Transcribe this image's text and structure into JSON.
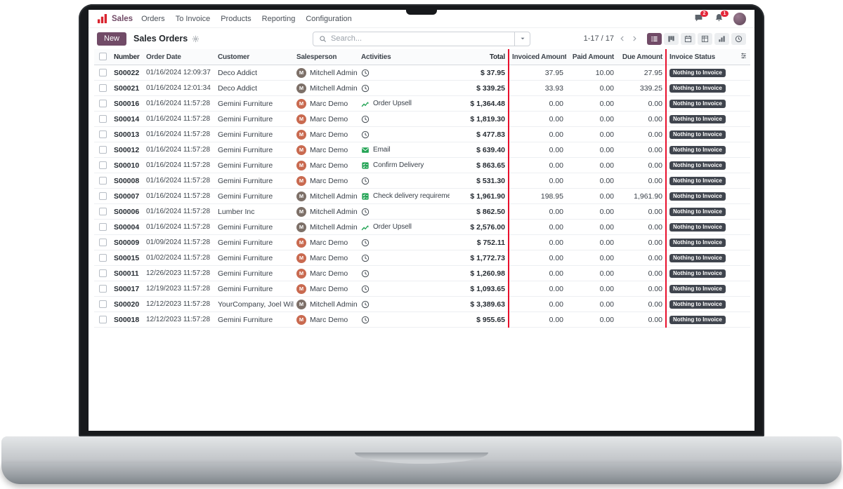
{
  "topbar": {
    "brand": "Sales",
    "menus": [
      "Orders",
      "To Invoice",
      "Products",
      "Reporting",
      "Configuration"
    ],
    "notifications": [
      {
        "icon": "chat-icon",
        "count": "2"
      },
      {
        "icon": "bell-icon",
        "count": "1"
      }
    ]
  },
  "control": {
    "new_button": "New",
    "title": "Sales Orders",
    "search_placeholder": "Search...",
    "pager": "1-17 / 17",
    "view_switcher": [
      {
        "icon": "list-view-icon",
        "active": true
      },
      {
        "icon": "kanban-view-icon",
        "active": false
      },
      {
        "icon": "calendar-view-icon",
        "active": false
      },
      {
        "icon": "pivot-view-icon",
        "active": false
      },
      {
        "icon": "graph-view-icon",
        "active": false
      },
      {
        "icon": "activity-view-icon",
        "active": false
      }
    ]
  },
  "colors": {
    "accent": "#714B67",
    "highlight_red": "#e8102d",
    "status_badge": "#40454e",
    "activity_green": "#23a455",
    "notification_red": "#e4273a"
  },
  "avatars": {
    "Mitchell Admin": {
      "initial": "M",
      "color": "#7d7068"
    },
    "Marc Demo": {
      "initial": "M",
      "color": "#c96a50"
    }
  },
  "table": {
    "headers": [
      "Number",
      "Order Date",
      "Customer",
      "Salesperson",
      "Activities",
      "Total",
      "Invoiced Amount",
      "Paid Amount",
      "Due Amount",
      "Invoice Status"
    ],
    "highlighted_columns": [
      "Invoiced Amount",
      "Paid Amount",
      "Due Amount"
    ],
    "rows": [
      {
        "number": "S00022",
        "date": "01/16/2024 12:09:37",
        "customer": "Deco Addict",
        "salesperson": "Mitchell Admin",
        "activity": {
          "icon": "clock-icon",
          "label": ""
        },
        "total": "$ 37.95",
        "invoiced": "37.95",
        "paid": "10.00",
        "due": "27.95",
        "status": "Nothing to Invoice"
      },
      {
        "number": "S00021",
        "date": "01/16/2024 12:01:34",
        "customer": "Deco Addict",
        "salesperson": "Mitchell Admin",
        "activity": {
          "icon": "clock-icon",
          "label": ""
        },
        "total": "$ 339.25",
        "invoiced": "33.93",
        "paid": "0.00",
        "due": "339.25",
        "status": "Nothing to Invoice"
      },
      {
        "number": "S00016",
        "date": "01/16/2024 11:57:28",
        "customer": "Gemini Furniture",
        "salesperson": "Marc Demo",
        "activity": {
          "icon": "chart-growth-icon",
          "label": "Order Upsell"
        },
        "total": "$ 1,364.48",
        "invoiced": "0.00",
        "paid": "0.00",
        "due": "0.00",
        "status": "Nothing to Invoice"
      },
      {
        "number": "S00014",
        "date": "01/16/2024 11:57:28",
        "customer": "Gemini Furniture",
        "salesperson": "Marc Demo",
        "activity": {
          "icon": "clock-icon",
          "label": ""
        },
        "total": "$ 1,819.30",
        "invoiced": "0.00",
        "paid": "0.00",
        "due": "0.00",
        "status": "Nothing to Invoice"
      },
      {
        "number": "S00013",
        "date": "01/16/2024 11:57:28",
        "customer": "Gemini Furniture",
        "salesperson": "Marc Demo",
        "activity": {
          "icon": "clock-icon",
          "label": ""
        },
        "total": "$ 477.83",
        "invoiced": "0.00",
        "paid": "0.00",
        "due": "0.00",
        "status": "Nothing to Invoice"
      },
      {
        "number": "S00012",
        "date": "01/16/2024 11:57:28",
        "customer": "Gemini Furniture",
        "salesperson": "Marc Demo",
        "activity": {
          "icon": "email-icon",
          "label": "Email"
        },
        "total": "$ 639.40",
        "invoiced": "0.00",
        "paid": "0.00",
        "due": "0.00",
        "status": "Nothing to Invoice"
      },
      {
        "number": "S00010",
        "date": "01/16/2024 11:57:28",
        "customer": "Gemini Furniture",
        "salesperson": "Marc Demo",
        "activity": {
          "icon": "checklist-icon",
          "label": "Confirm Delivery"
        },
        "total": "$ 863.65",
        "invoiced": "0.00",
        "paid": "0.00",
        "due": "0.00",
        "status": "Nothing to Invoice"
      },
      {
        "number": "S00008",
        "date": "01/16/2024 11:57:28",
        "customer": "Gemini Furniture",
        "salesperson": "Marc Demo",
        "activity": {
          "icon": "clock-icon",
          "label": ""
        },
        "total": "$ 531.30",
        "invoiced": "0.00",
        "paid": "0.00",
        "due": "0.00",
        "status": "Nothing to Invoice"
      },
      {
        "number": "S00007",
        "date": "01/16/2024 11:57:28",
        "customer": "Gemini Furniture",
        "salesperson": "Mitchell Admin",
        "activity": {
          "icon": "checklist-icon",
          "label": "Check delivery requirements"
        },
        "total": "$ 1,961.90",
        "invoiced": "198.95",
        "paid": "0.00",
        "due": "1,961.90",
        "status": "Nothing to Invoice"
      },
      {
        "number": "S00006",
        "date": "01/16/2024 11:57:28",
        "customer": "Lumber Inc",
        "salesperson": "Mitchell Admin",
        "activity": {
          "icon": "clock-icon",
          "label": ""
        },
        "total": "$ 862.50",
        "invoiced": "0.00",
        "paid": "0.00",
        "due": "0.00",
        "status": "Nothing to Invoice"
      },
      {
        "number": "S00004",
        "date": "01/16/2024 11:57:28",
        "customer": "Gemini Furniture",
        "salesperson": "Mitchell Admin",
        "activity": {
          "icon": "chart-growth-icon",
          "label": "Order Upsell"
        },
        "total": "$ 2,576.00",
        "invoiced": "0.00",
        "paid": "0.00",
        "due": "0.00",
        "status": "Nothing to Invoice"
      },
      {
        "number": "S00009",
        "date": "01/09/2024 11:57:28",
        "customer": "Gemini Furniture",
        "salesperson": "Marc Demo",
        "activity": {
          "icon": "clock-icon",
          "label": ""
        },
        "total": "$ 752.11",
        "invoiced": "0.00",
        "paid": "0.00",
        "due": "0.00",
        "status": "Nothing to Invoice"
      },
      {
        "number": "S00015",
        "date": "01/02/2024 11:57:28",
        "customer": "Gemini Furniture",
        "salesperson": "Marc Demo",
        "activity": {
          "icon": "clock-icon",
          "label": ""
        },
        "total": "$ 1,772.73",
        "invoiced": "0.00",
        "paid": "0.00",
        "due": "0.00",
        "status": "Nothing to Invoice"
      },
      {
        "number": "S00011",
        "date": "12/26/2023 11:57:28",
        "customer": "Gemini Furniture",
        "salesperson": "Marc Demo",
        "activity": {
          "icon": "clock-icon",
          "label": ""
        },
        "total": "$ 1,260.98",
        "invoiced": "0.00",
        "paid": "0.00",
        "due": "0.00",
        "status": "Nothing to Invoice"
      },
      {
        "number": "S00017",
        "date": "12/19/2023 11:57:28",
        "customer": "Gemini Furniture",
        "salesperson": "Marc Demo",
        "activity": {
          "icon": "clock-icon",
          "label": ""
        },
        "total": "$ 1,093.65",
        "invoiced": "0.00",
        "paid": "0.00",
        "due": "0.00",
        "status": "Nothing to Invoice"
      },
      {
        "number": "S00020",
        "date": "12/12/2023 11:57:28",
        "customer": "YourCompany, Joel Willis",
        "salesperson": "Mitchell Admin",
        "activity": {
          "icon": "clock-icon",
          "label": ""
        },
        "total": "$ 3,389.63",
        "invoiced": "0.00",
        "paid": "0.00",
        "due": "0.00",
        "status": "Nothing to Invoice"
      },
      {
        "number": "S00018",
        "date": "12/12/2023 11:57:28",
        "customer": "Gemini Furniture",
        "salesperson": "Marc Demo",
        "activity": {
          "icon": "clock-icon",
          "label": ""
        },
        "total": "$ 955.65",
        "invoiced": "0.00",
        "paid": "0.00",
        "due": "0.00",
        "status": "Nothing to Invoice"
      }
    ]
  }
}
